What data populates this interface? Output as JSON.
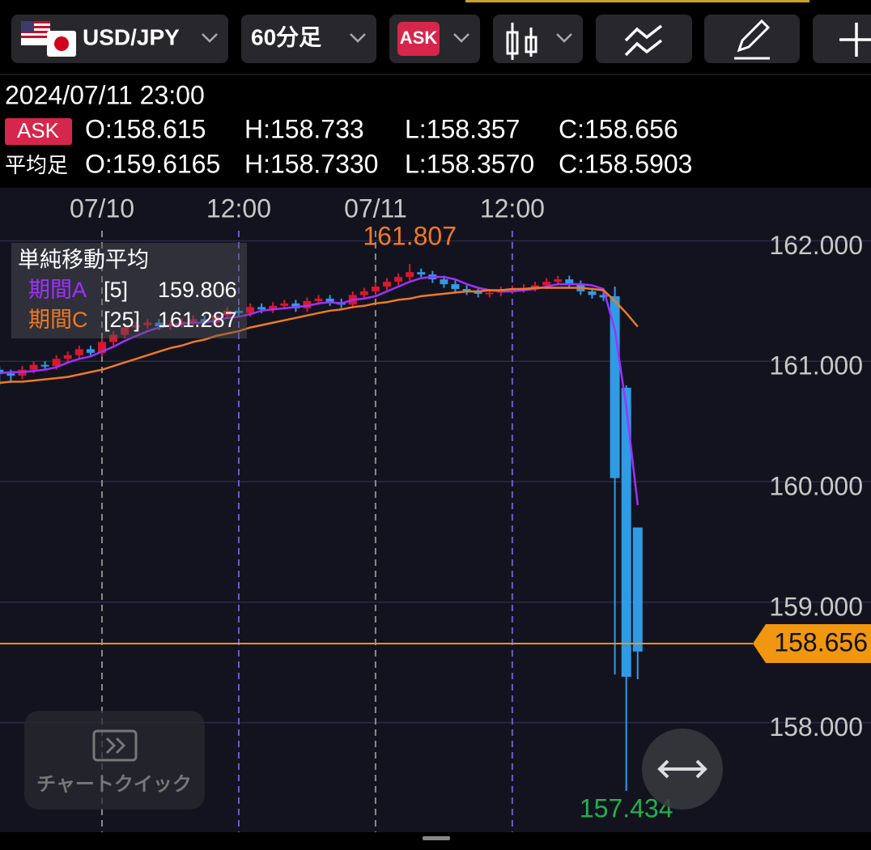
{
  "toolbar": {
    "pair": "USD/JPY",
    "timeframe": "60分足",
    "side": "ASK"
  },
  "info": {
    "datetime": "2024/07/11 23:00",
    "side_badge": "ASK",
    "ask": [
      "O:158.615",
      "H:158.733",
      "L:158.357",
      "C:158.656"
    ],
    "heikin_label": "平均足",
    "heikin": [
      "O:159.6165",
      "H:158.7330",
      "L:158.3570",
      "C:158.5903"
    ]
  },
  "quick_button": "チャートクイック",
  "chart_data": {
    "type": "candlestick",
    "categories": [
      null,
      null,
      null,
      null,
      null,
      null,
      null,
      null,
      null,
      "07/10",
      null,
      null,
      null,
      null,
      null,
      null,
      null,
      null,
      null,
      null,
      null,
      "12:00",
      null,
      null,
      null,
      null,
      null,
      null,
      null,
      null,
      null,
      null,
      null,
      "07/11",
      null,
      null,
      null,
      null,
      null,
      null,
      null,
      null,
      null,
      null,
      null,
      "12:00",
      null,
      null,
      null,
      null,
      null,
      null,
      null,
      null,
      null,
      null,
      null
    ],
    "open": [
      160.93,
      160.9,
      160.88,
      160.93,
      160.97,
      160.96,
      161.02,
      161.05,
      161.1,
      161.07,
      161.16,
      161.22,
      161.28,
      161.3,
      161.32,
      161.29,
      161.31,
      161.33,
      161.35,
      161.32,
      161.38,
      161.42,
      161.4,
      161.45,
      161.43,
      161.46,
      161.48,
      161.44,
      161.5,
      161.52,
      161.49,
      161.47,
      161.55,
      161.58,
      161.62,
      161.66,
      161.7,
      161.74,
      161.72,
      161.68,
      161.64,
      161.6,
      161.58,
      161.56,
      161.57,
      161.59,
      161.6,
      161.61,
      161.63,
      161.66,
      161.68,
      161.64,
      161.58,
      161.55,
      161.54,
      160.78,
      159.62
    ],
    "high": [
      160.96,
      160.93,
      160.96,
      161.0,
      161.0,
      161.05,
      161.08,
      161.13,
      161.13,
      161.19,
      161.25,
      161.31,
      161.33,
      161.35,
      161.35,
      161.34,
      161.36,
      161.38,
      161.38,
      161.41,
      161.45,
      161.45,
      161.48,
      161.48,
      161.49,
      161.51,
      161.51,
      161.53,
      161.55,
      161.55,
      161.52,
      161.58,
      161.61,
      161.65,
      161.69,
      161.73,
      161.807,
      161.77,
      161.75,
      161.71,
      161.67,
      161.63,
      161.61,
      161.6,
      161.62,
      161.63,
      161.64,
      161.66,
      161.69,
      161.71,
      161.71,
      161.67,
      161.61,
      161.58,
      161.62,
      160.8,
      159.62
    ],
    "low": [
      160.8,
      160.82,
      160.85,
      160.9,
      160.93,
      160.93,
      160.99,
      161.02,
      161.04,
      161.04,
      161.13,
      161.19,
      161.25,
      161.27,
      161.26,
      161.26,
      161.28,
      161.3,
      161.29,
      161.29,
      161.35,
      161.37,
      161.37,
      161.4,
      161.4,
      161.43,
      161.41,
      161.41,
      161.47,
      161.46,
      161.44,
      161.44,
      161.52,
      161.55,
      161.59,
      161.63,
      161.67,
      161.69,
      161.65,
      161.61,
      161.57,
      161.55,
      161.53,
      161.53,
      161.54,
      161.56,
      161.57,
      161.58,
      161.6,
      161.63,
      161.61,
      161.55,
      161.52,
      161.5,
      158.4,
      157.434,
      158.36
    ],
    "close": [
      160.9,
      160.88,
      160.93,
      160.97,
      160.96,
      161.02,
      161.05,
      161.1,
      161.07,
      161.16,
      161.22,
      161.28,
      161.3,
      161.32,
      161.29,
      161.31,
      161.33,
      161.35,
      161.32,
      161.38,
      161.42,
      161.4,
      161.45,
      161.43,
      161.46,
      161.48,
      161.44,
      161.5,
      161.52,
      161.49,
      161.47,
      161.55,
      161.58,
      161.62,
      161.66,
      161.7,
      161.74,
      161.72,
      161.68,
      161.64,
      161.6,
      161.58,
      161.56,
      161.57,
      161.59,
      161.6,
      161.61,
      161.63,
      161.66,
      161.68,
      161.64,
      161.58,
      161.55,
      161.53,
      160.03,
      158.38,
      158.59
    ],
    "up_color": "#d8182e",
    "down_color": "#2f9be4",
    "legend_title": "単純移動平均",
    "series": [
      {
        "name": "期間A",
        "period_label": "[5]",
        "color": "#a030ff",
        "values": [
          160.9,
          160.91,
          160.91,
          160.92,
          160.93,
          160.95,
          160.99,
          161.02,
          161.04,
          161.08,
          161.12,
          161.17,
          161.21,
          161.25,
          161.28,
          161.3,
          161.31,
          161.32,
          161.32,
          161.34,
          161.36,
          161.37,
          161.39,
          161.42,
          161.43,
          161.44,
          161.45,
          161.46,
          161.48,
          161.49,
          161.48,
          161.51,
          161.52,
          161.54,
          161.58,
          161.62,
          161.66,
          161.69,
          161.7,
          161.7,
          161.68,
          161.64,
          161.61,
          161.59,
          161.58,
          161.58,
          161.59,
          161.6,
          161.62,
          161.64,
          161.64,
          161.64,
          161.63,
          161.6,
          161.26,
          160.62,
          159.806
        ]
      },
      {
        "name": "期間C",
        "period_label": "[25]",
        "color": "#f07a22",
        "values": [
          160.82,
          160.83,
          160.83,
          160.84,
          160.85,
          160.86,
          160.87,
          160.89,
          160.91,
          160.93,
          160.96,
          160.99,
          161.02,
          161.05,
          161.08,
          161.11,
          161.13,
          161.16,
          161.18,
          161.21,
          161.23,
          161.25,
          161.28,
          161.3,
          161.32,
          161.34,
          161.36,
          161.38,
          161.4,
          161.42,
          161.43,
          161.45,
          161.46,
          161.48,
          161.49,
          161.51,
          161.52,
          161.54,
          161.55,
          161.56,
          161.57,
          161.58,
          161.58,
          161.59,
          161.59,
          161.6,
          161.6,
          161.61,
          161.61,
          161.61,
          161.61,
          161.61,
          161.6,
          161.59,
          161.5,
          161.4,
          161.287
        ]
      }
    ],
    "current_price": 158.656,
    "current_price_color": "#f0960f",
    "ylim": [
      157.09,
      162.44
    ],
    "yticks": [
      {
        "value": 158,
        "label": "158.000"
      },
      {
        "value": 159,
        "label": "159.000"
      },
      {
        "value": 160,
        "label": "160.000"
      },
      {
        "value": 161,
        "label": "161.000"
      },
      {
        "value": 162,
        "label": "162.000"
      }
    ],
    "grid": true
  }
}
